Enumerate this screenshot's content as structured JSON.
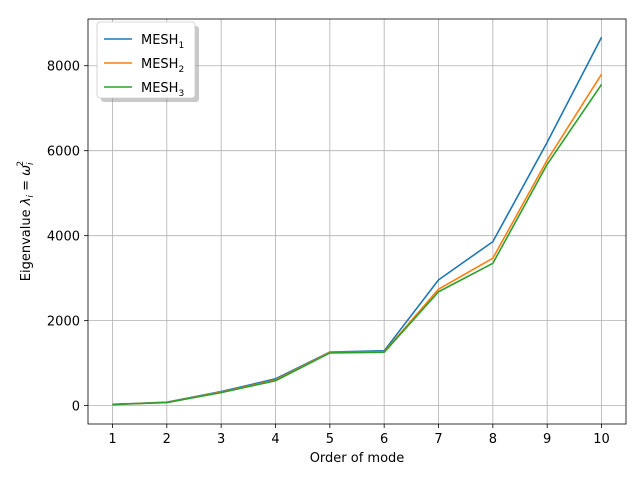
{
  "chart_data": {
    "type": "line",
    "title": "",
    "xlabel": "Order of mode",
    "ylabel": {
      "prefix": "Eigenvalue ",
      "lambda": "λ",
      "lambda_sub": "i",
      "equals": " = ",
      "omega": "ω",
      "omega_sub": "i",
      "omega_sup": "2"
    },
    "x": [
      1,
      2,
      3,
      4,
      5,
      6,
      7,
      8,
      9,
      10
    ],
    "xlim": [
      0.55,
      10.45
    ],
    "ylim": [
      -433,
      9100
    ],
    "xticks": [
      1,
      2,
      3,
      4,
      5,
      6,
      7,
      8,
      9,
      10
    ],
    "yticks": [
      0,
      2000,
      4000,
      6000,
      8000
    ],
    "grid": true,
    "legend_position": "top-left",
    "series": [
      {
        "name": "MESH",
        "sub": "1",
        "color": "#1f77b4",
        "values": [
          30,
          80,
          330,
          630,
          1260,
          1290,
          2960,
          3860,
          6200,
          8670
        ]
      },
      {
        "name": "MESH",
        "sub": "2",
        "color": "#ff7f0e",
        "values": [
          25,
          75,
          315,
          600,
          1250,
          1265,
          2740,
          3470,
          5780,
          7800
        ]
      },
      {
        "name": "MESH",
        "sub": "3",
        "color": "#2ca02c",
        "values": [
          25,
          72,
          305,
          585,
          1240,
          1255,
          2680,
          3350,
          5680,
          7560
        ]
      }
    ]
  }
}
